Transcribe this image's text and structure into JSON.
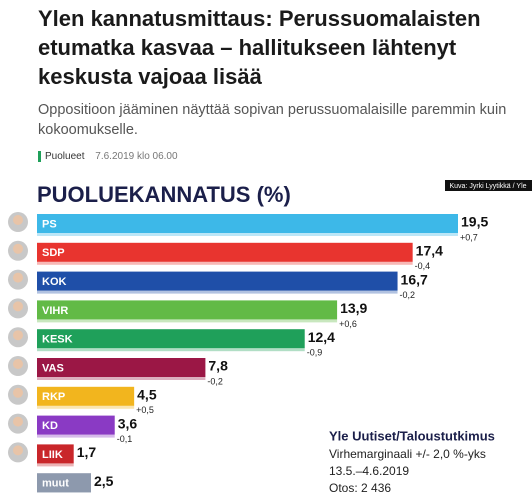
{
  "article": {
    "headline": "Ylen kannatusmittaus: Perussuomalaisten etumatka kasvaa – hallitukseen lähtenyt keskusta vajoaa lisää",
    "lead": "Oppositioon jääminen näyttää sopivan perussuomalaisille paremmin kuin kokoomukselle.",
    "tag": "Puolueet",
    "date": "7.6.2019 klo 06.00"
  },
  "chart_data": {
    "type": "bar",
    "orientation": "horizontal",
    "title": "PUOLUEKANNATUS (%)",
    "credit": "Kuva: Jyrki Lyytikkä / Yle",
    "categories": [
      "PS",
      "SDP",
      "KOK",
      "VIHR",
      "KESK",
      "VAS",
      "RKP",
      "KD",
      "LIIK",
      "muut"
    ],
    "values": [
      19.5,
      17.4,
      16.7,
      13.9,
      12.4,
      7.8,
      4.5,
      3.6,
      1.7,
      2.5
    ],
    "value_labels": [
      "19,5",
      "17,4",
      "16,7",
      "13,9",
      "12,4",
      "7,8",
      "4,5",
      "3,6",
      "1,7",
      "2,5"
    ],
    "change_labels": [
      "+0,7",
      "-0,4",
      "-0,2",
      "+0,6",
      "-0,9",
      "-0,2",
      "+0,5",
      "-0,1",
      null,
      null
    ],
    "colors": [
      "#3db8e8",
      "#e8342f",
      "#1f4fa8",
      "#62ba46",
      "#1fa05a",
      "#9b1745",
      "#f2b51e",
      "#8a3ac4",
      "#c9262a",
      "#8d99ad"
    ],
    "source": {
      "name": "Yle Uutiset/Taloustutkimus",
      "margin": "Virhemarginaali +/- 2,0 %-yks",
      "period": "13.5.–4.6.2019",
      "sample": "Otos: 2 436"
    }
  }
}
